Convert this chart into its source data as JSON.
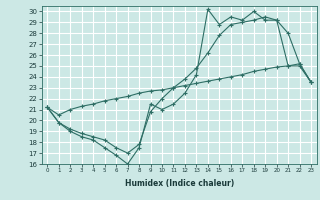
{
  "xlabel": "Humidex (Indice chaleur)",
  "ylabel": "",
  "bg_color": "#cce8e5",
  "grid_color": "#ffffff",
  "line_color": "#2e6e65",
  "xlim": [
    -0.5,
    23.5
  ],
  "ylim": [
    16,
    30.5
  ],
  "xticks": [
    0,
    1,
    2,
    3,
    4,
    5,
    6,
    7,
    8,
    9,
    10,
    11,
    12,
    13,
    14,
    15,
    16,
    17,
    18,
    19,
    20,
    21,
    22,
    23
  ],
  "yticks": [
    16,
    17,
    18,
    19,
    20,
    21,
    22,
    23,
    24,
    25,
    26,
    27,
    28,
    29,
    30
  ],
  "line1_x": [
    0,
    1,
    2,
    3,
    4,
    5,
    6,
    7,
    8,
    9,
    10,
    11,
    12,
    13,
    14,
    15,
    16,
    17,
    18,
    19,
    20,
    21,
    22,
    23
  ],
  "line1_y": [
    21.2,
    19.8,
    19.0,
    18.5,
    18.2,
    17.5,
    16.8,
    16.0,
    17.5,
    21.5,
    21.0,
    21.5,
    22.5,
    24.2,
    30.2,
    28.8,
    29.5,
    29.2,
    30.0,
    29.2,
    29.2,
    25.0,
    25.0,
    23.5
  ],
  "line2_x": [
    0,
    1,
    2,
    3,
    4,
    5,
    6,
    7,
    8,
    9,
    10,
    11,
    12,
    13,
    14,
    15,
    16,
    17,
    18,
    19,
    20,
    21,
    22,
    23
  ],
  "line2_y": [
    21.2,
    19.8,
    19.2,
    18.8,
    18.5,
    18.2,
    17.5,
    17.0,
    17.8,
    20.8,
    22.0,
    23.0,
    23.8,
    24.8,
    26.2,
    27.8,
    28.8,
    29.0,
    29.2,
    29.5,
    29.2,
    28.0,
    25.2,
    23.5
  ],
  "line3_x": [
    0,
    1,
    2,
    3,
    4,
    5,
    6,
    7,
    8,
    9,
    10,
    11,
    12,
    13,
    14,
    15,
    16,
    17,
    18,
    19,
    20,
    21,
    22,
    23
  ],
  "line3_y": [
    21.2,
    20.5,
    21.0,
    21.3,
    21.5,
    21.8,
    22.0,
    22.2,
    22.5,
    22.7,
    22.8,
    23.0,
    23.2,
    23.4,
    23.6,
    23.8,
    24.0,
    24.2,
    24.5,
    24.7,
    24.9,
    25.0,
    25.2,
    23.5
  ]
}
